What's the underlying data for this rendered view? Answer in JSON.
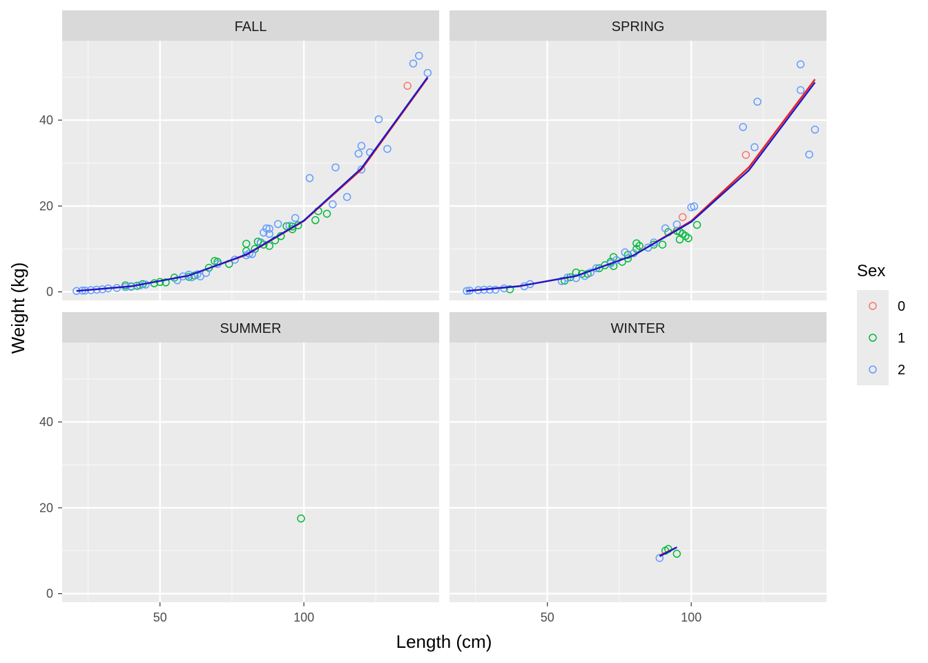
{
  "chart_data": {
    "type": "scatter",
    "xlabel": "Length (cm)",
    "ylabel": "Weight (kg)",
    "x_ticks": [
      50,
      100
    ],
    "y_ticks": [
      0,
      20,
      40
    ],
    "xlim": [
      16,
      147
    ],
    "ylim": [
      -2,
      58.5
    ],
    "grid": true,
    "legend": {
      "title": "Sex",
      "position": "right",
      "entries": [
        {
          "label": "0",
          "color": "#F8766D"
        },
        {
          "label": "1",
          "color": "#00BA38"
        },
        {
          "label": "2",
          "color": "#619CFF"
        }
      ]
    },
    "fit_line_colors": {
      "red": "#ee1c1c",
      "blue": "#1a1acd"
    },
    "facets": [
      {
        "name": "FALL",
        "points": {
          "0": [
            [
              136,
              48
            ]
          ],
          "1": [
            [
              38,
              1.5
            ],
            [
              40,
              1.2
            ],
            [
              42,
              1.4
            ],
            [
              44,
              1.8
            ],
            [
              48,
              2.0
            ],
            [
              50,
              2.3
            ],
            [
              52,
              2.2
            ],
            [
              55,
              3.3
            ],
            [
              60,
              3.5
            ],
            [
              62,
              3.8
            ],
            [
              67,
              5.6
            ],
            [
              69,
              7.2
            ],
            [
              70,
              7.0
            ],
            [
              74,
              6.5
            ],
            [
              80,
              9.5
            ],
            [
              80,
              11.2
            ],
            [
              83,
              10.0
            ],
            [
              84,
              11.7
            ],
            [
              85,
              11.5
            ],
            [
              86,
              11.0
            ],
            [
              88,
              10.7
            ],
            [
              90,
              12.0
            ],
            [
              92,
              13.0
            ],
            [
              94,
              15.3
            ],
            [
              96,
              15.2
            ],
            [
              96,
              14.6
            ],
            [
              98,
              15.5
            ],
            [
              104,
              16.7
            ],
            [
              105,
              18.8
            ],
            [
              108,
              18.2
            ]
          ],
          "2": [
            [
              21,
              0.2
            ],
            [
              23,
              0.3
            ],
            [
              24,
              0.3
            ],
            [
              26,
              0.4
            ],
            [
              28,
              0.5
            ],
            [
              30,
              0.6
            ],
            [
              32,
              0.8
            ],
            [
              35,
              0.9
            ],
            [
              38,
              1.1
            ],
            [
              40,
              1.3
            ],
            [
              43,
              1.5
            ],
            [
              45,
              1.7
            ],
            [
              56,
              2.7
            ],
            [
              58,
              3.6
            ],
            [
              60,
              4.0
            ],
            [
              61,
              3.4
            ],
            [
              63,
              4.1
            ],
            [
              64,
              3.6
            ],
            [
              66,
              4.4
            ],
            [
              70,
              6.5
            ],
            [
              76,
              7.5
            ],
            [
              80,
              8.5
            ],
            [
              81,
              8.9
            ],
            [
              82,
              8.8
            ],
            [
              85,
              11.4
            ],
            [
              86,
              13.8
            ],
            [
              87,
              14.8
            ],
            [
              88,
              14.7
            ],
            [
              88,
              13.5
            ],
            [
              91,
              15.8
            ],
            [
              95,
              15.4
            ],
            [
              97,
              17.2
            ],
            [
              102,
              26.5
            ],
            [
              110,
              20.4
            ],
            [
              111,
              29.0
            ],
            [
              115,
              22.1
            ],
            [
              119,
              32.2
            ],
            [
              120,
              34.0
            ],
            [
              120,
              28.5
            ],
            [
              123,
              32.5
            ],
            [
              126,
              40.2
            ],
            [
              129,
              33.3
            ],
            [
              138,
              53.2
            ],
            [
              140,
              55.0
            ],
            [
              143,
              51.0
            ]
          ]
        },
        "fits": [
          {
            "color": "red",
            "x": [
              21,
              40,
              60,
              80,
              100,
              120,
              143
            ],
            "y": [
              0.2,
              1.3,
              3.8,
              8.6,
              16.5,
              28.5,
              49.8
            ]
          },
          {
            "color": "blue",
            "x": [
              21,
              40,
              60,
              80,
              100,
              120,
              143
            ],
            "y": [
              0.2,
              1.3,
              3.8,
              8.7,
              16.6,
              28.8,
              50.0
            ]
          }
        ]
      },
      {
        "name": "SPRING",
        "points": {
          "0": [
            [
              97,
              17.4
            ],
            [
              119,
              31.9
            ]
          ],
          "1": [
            [
              37,
              0.6
            ],
            [
              56,
              2.6
            ],
            [
              58,
              3.4
            ],
            [
              60,
              4.5
            ],
            [
              62,
              4.2
            ],
            [
              64,
              4.2
            ],
            [
              68,
              5.5
            ],
            [
              70,
              6.2
            ],
            [
              72,
              7.0
            ],
            [
              73,
              8.1
            ],
            [
              73,
              6.0
            ],
            [
              76,
              7.0
            ],
            [
              78,
              7.8
            ],
            [
              78,
              8.6
            ],
            [
              81,
              11.3
            ],
            [
              81,
              10.0
            ],
            [
              82,
              10.7
            ],
            [
              85,
              10.3
            ],
            [
              87,
              11.0
            ],
            [
              90,
              11.0
            ],
            [
              92,
              13.9
            ],
            [
              95,
              14.2
            ],
            [
              96,
              14.0
            ],
            [
              96,
              12.2
            ],
            [
              97,
              13.5
            ],
            [
              98,
              13.0
            ],
            [
              99,
              12.5
            ],
            [
              102,
              15.6
            ]
          ],
          "2": [
            [
              22,
              0.2
            ],
            [
              23,
              0.3
            ],
            [
              26,
              0.4
            ],
            [
              28,
              0.5
            ],
            [
              30,
              0.5
            ],
            [
              32,
              0.5
            ],
            [
              35,
              0.8
            ],
            [
              42,
              1.3
            ],
            [
              44,
              1.8
            ],
            [
              55,
              2.5
            ],
            [
              57,
              3.3
            ],
            [
              60,
              3.2
            ],
            [
              63,
              3.7
            ],
            [
              65,
              4.5
            ],
            [
              67,
              5.5
            ],
            [
              72,
              6.6
            ],
            [
              74,
              7.4
            ],
            [
              77,
              9.2
            ],
            [
              80,
              9.0
            ],
            [
              85,
              10.3
            ],
            [
              87,
              11.5
            ],
            [
              91,
              14.8
            ],
            [
              95,
              15.7
            ],
            [
              100,
              19.7
            ],
            [
              101,
              19.9
            ],
            [
              118,
              38.4
            ],
            [
              122,
              33.7
            ],
            [
              123,
              44.3
            ],
            [
              138,
              53.0
            ],
            [
              138,
              47.0
            ],
            [
              141,
              32.0
            ],
            [
              143,
              37.8
            ]
          ]
        },
        "fits": [
          {
            "color": "red",
            "x": [
              22,
              40,
              60,
              80,
              100,
              120,
              143
            ],
            "y": [
              0.2,
              1.3,
              3.7,
              8.5,
              16.5,
              29.0,
              49.5
            ]
          },
          {
            "color": "blue",
            "x": [
              22,
              40,
              60,
              80,
              100,
              120,
              143
            ],
            "y": [
              0.2,
              1.3,
              3.7,
              8.5,
              16.3,
              28.3,
              48.8
            ]
          }
        ]
      },
      {
        "name": "SUMMER",
        "points": {
          "0": [],
          "1": [
            [
              99,
              17.5
            ]
          ],
          "2": []
        },
        "fits": []
      },
      {
        "name": "WINTER",
        "points": {
          "0": [],
          "1": [
            [
              91,
              10.0
            ],
            [
              92,
              10.4
            ],
            [
              95,
              9.3
            ]
          ],
          "2": [
            [
              89,
              8.3
            ]
          ]
        },
        "fits": [
          {
            "color": "red",
            "x": [
              89,
              95
            ],
            "y": [
              8.9,
              10.8
            ]
          },
          {
            "color": "blue",
            "x": [
              89,
              95
            ],
            "y": [
              8.7,
              10.8
            ]
          }
        ]
      }
    ]
  }
}
